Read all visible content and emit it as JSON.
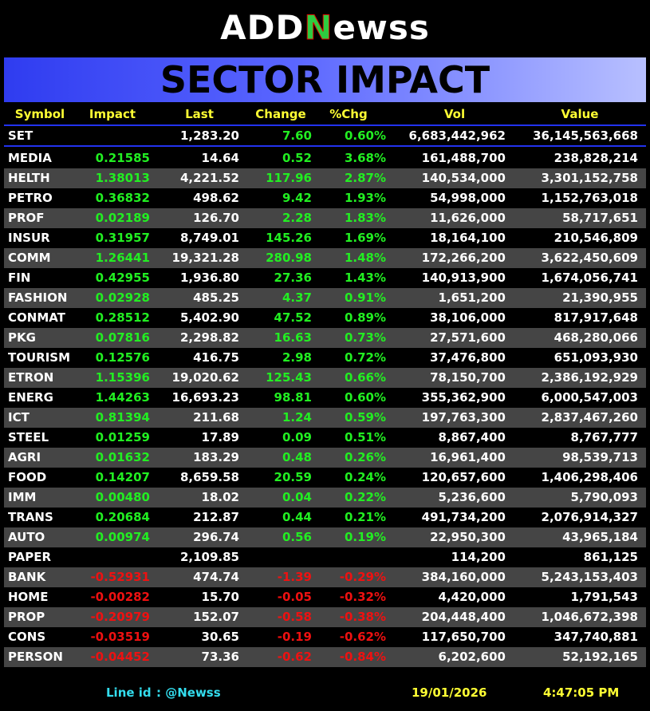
{
  "logo": [
    "ADD",
    "N",
    "ewss"
  ],
  "title": "SECTOR IMPACT",
  "table": {
    "header": [
      "Symbol",
      "Impact",
      "Last",
      "Change",
      "%Chg",
      "Vol",
      "Value"
    ],
    "index_row": [
      "SET",
      null,
      "1,283.20",
      "7.60",
      "0.60%",
      "6,683,442,962",
      "36,145,563,668"
    ],
    "rows": [
      [
        "MEDIA",
        "0.21585",
        "14.64",
        "0.52",
        "3.68%",
        "161,488,700",
        "238,828,214"
      ],
      [
        "HELTH",
        "1.38013",
        "4,221.52",
        "117.96",
        "2.87%",
        "140,534,000",
        "3,301,152,758"
      ],
      [
        "PETRO",
        "0.36832",
        "498.62",
        "9.42",
        "1.93%",
        "54,998,000",
        "1,152,763,018"
      ],
      [
        "PROF",
        "0.02189",
        "126.70",
        "2.28",
        "1.83%",
        "11,626,000",
        "58,717,651"
      ],
      [
        "INSUR",
        "0.31957",
        "8,749.01",
        "145.26",
        "1.69%",
        "18,164,100",
        "210,546,809"
      ],
      [
        "COMM",
        "1.26441",
        "19,321.28",
        "280.98",
        "1.48%",
        "172,266,200",
        "3,622,450,609"
      ],
      [
        "FIN",
        "0.42955",
        "1,936.80",
        "27.36",
        "1.43%",
        "140,913,900",
        "1,674,056,741"
      ],
      [
        "FASHION",
        "0.02928",
        "485.25",
        "4.37",
        "0.91%",
        "1,651,200",
        "21,390,955"
      ],
      [
        "CONMAT",
        "0.28512",
        "5,402.90",
        "47.52",
        "0.89%",
        "38,106,000",
        "817,917,648"
      ],
      [
        "PKG",
        "0.07816",
        "2,298.82",
        "16.63",
        "0.73%",
        "27,571,600",
        "468,280,066"
      ],
      [
        "TOURISM",
        "0.12576",
        "416.75",
        "2.98",
        "0.72%",
        "37,476,800",
        "651,093,930"
      ],
      [
        "ETRON",
        "1.15396",
        "19,020.62",
        "125.43",
        "0.66%",
        "78,150,700",
        "2,386,192,929"
      ],
      [
        "ENERG",
        "1.44263",
        "16,693.23",
        "98.81",
        "0.60%",
        "355,362,900",
        "6,000,547,003"
      ],
      [
        "ICT",
        "0.81394",
        "211.68",
        "1.24",
        "0.59%",
        "197,763,300",
        "2,837,467,260"
      ],
      [
        "STEEL",
        "0.01259",
        "17.89",
        "0.09",
        "0.51%",
        "8,867,400",
        "8,767,777"
      ],
      [
        "AGRI",
        "0.01632",
        "183.29",
        "0.48",
        "0.26%",
        "16,961,400",
        "98,539,713"
      ],
      [
        "FOOD",
        "0.14207",
        "8,659.58",
        "20.59",
        "0.24%",
        "120,657,600",
        "1,406,298,406"
      ],
      [
        "IMM",
        "0.00480",
        "18.02",
        "0.04",
        "0.22%",
        "5,236,600",
        "5,790,093"
      ],
      [
        "TRANS",
        "0.20684",
        "212.87",
        "0.44",
        "0.21%",
        "491,734,200",
        "2,076,914,327"
      ],
      [
        "AUTO",
        "0.00974",
        "296.74",
        "0.56",
        "0.19%",
        "22,950,300",
        "43,965,184"
      ],
      [
        "PAPER",
        null,
        "2,109.85",
        null,
        null,
        "114,200",
        "861,125"
      ],
      [
        "BANK",
        "-0.52931",
        "474.74",
        "-1.39",
        "-0.29%",
        "384,160,000",
        "5,243,153,403"
      ],
      [
        "HOME",
        "-0.00282",
        "15.70",
        "-0.05",
        "-0.32%",
        "4,420,000",
        "1,791,543"
      ],
      [
        "PROP",
        "-0.20979",
        "152.07",
        "-0.58",
        "-0.38%",
        "204,448,400",
        "1,046,672,398"
      ],
      [
        "CONS",
        "-0.03519",
        "30.65",
        "-0.19",
        "-0.62%",
        "117,650,700",
        "347,740,881"
      ],
      [
        "PERSON",
        "-0.04452",
        "73.36",
        "-0.62",
        "-0.84%",
        "6,202,600",
        "52,192,165"
      ]
    ]
  },
  "footer": {
    "line_label": "Line id",
    "line_id": ": @Newss",
    "date": "19/01/2026",
    "time": "4:47:05 PM"
  }
}
